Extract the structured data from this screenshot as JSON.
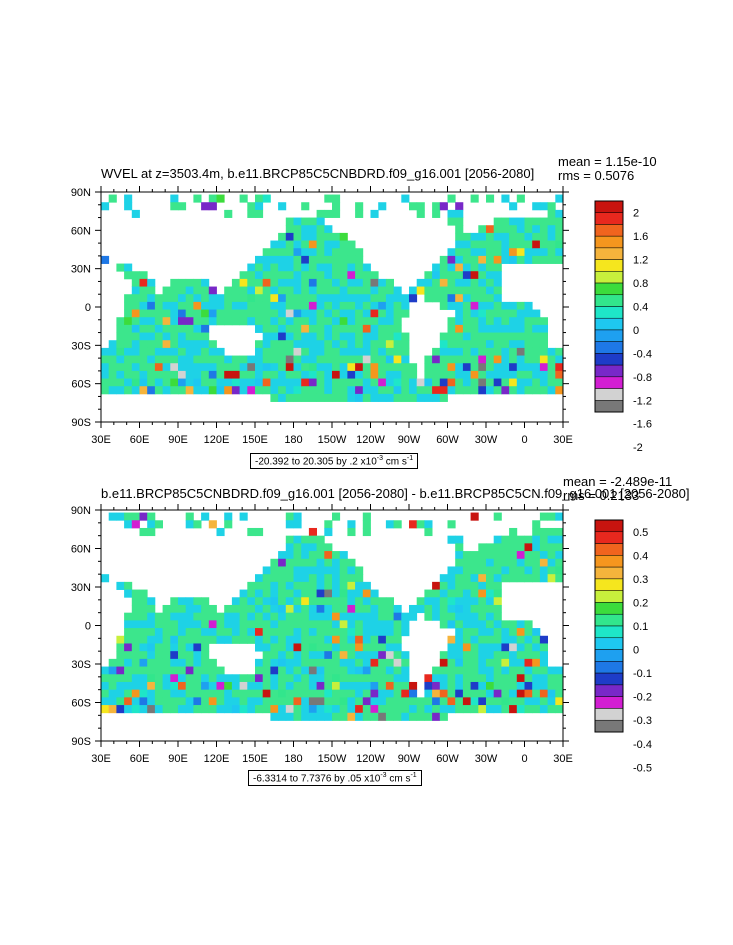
{
  "panels": [
    {
      "title": "WVEL at z=3503.4m, b.e11.BRCP85C5CNBDRD.f09_g16.001 [2056-2080]",
      "mean_text": "mean = 1.15e-10",
      "rms_text": "rms = 0.5076",
      "range_text": "-20.392 to 20.305 by .2 x10",
      "range_exp": "-3",
      "range_units": " cm s",
      "range_units_exp": "-1",
      "lat_labels": [
        "90N",
        "60N",
        "30N",
        "0",
        "30S",
        "60S",
        "90S"
      ],
      "lon_labels": [
        "30E",
        "60E",
        "90E",
        "120E",
        "150E",
        "180",
        "150W",
        "120W",
        "90W",
        "60W",
        "30W",
        "0",
        "30E"
      ],
      "colorbar_labels": [
        "2",
        "1.6",
        "1.2",
        "0.8",
        "0.4",
        "0",
        "-0.4",
        "-0.8",
        "-1.2",
        "-1.6",
        "-2"
      ]
    },
    {
      "title": "b.e11.BRCP85C5CNBDRD.f09_g16.001 [2056-2080] - b.e11.BRCP85C5CN.f09_g16.001 [2056-2080]",
      "mean_text": "mean = -2.489e-11",
      "rms_text": "rms = 0.2133",
      "range_text": "-6.3314 to 7.7376 by .05 x10",
      "range_exp": "-3",
      "range_units": " cm s",
      "range_units_exp": "-1",
      "lat_labels": [
        "90N",
        "60N",
        "30N",
        "0",
        "30S",
        "60S",
        "90S"
      ],
      "lon_labels": [
        "30E",
        "60E",
        "90E",
        "120E",
        "150E",
        "180",
        "150W",
        "120W",
        "90W",
        "60W",
        "30W",
        "0",
        "30E"
      ],
      "colorbar_labels": [
        "0.5",
        "0.4",
        "0.3",
        "0.2",
        "0.1",
        "0",
        "-0.1",
        "-0.2",
        "-0.3",
        "-0.4",
        "-0.5"
      ]
    }
  ],
  "colorbar_colors": [
    "#c8140f",
    "#e8281e",
    "#f0641e",
    "#f5961e",
    "#f5b43c",
    "#f5e61e",
    "#c8f03c",
    "#3cdc3c",
    "#32e68c",
    "#1ee6c8",
    "#1ec8f0",
    "#1ea0f0",
    "#1e78e6",
    "#1e3cc8",
    "#7828c8",
    "#d21ed2",
    "#d2d2d2",
    "#787878"
  ],
  "map_colors": {
    "ocean_dominant": "#3ce68c",
    "ocean_secondary": "#1ed2e6",
    "land": "#ffffff"
  }
}
